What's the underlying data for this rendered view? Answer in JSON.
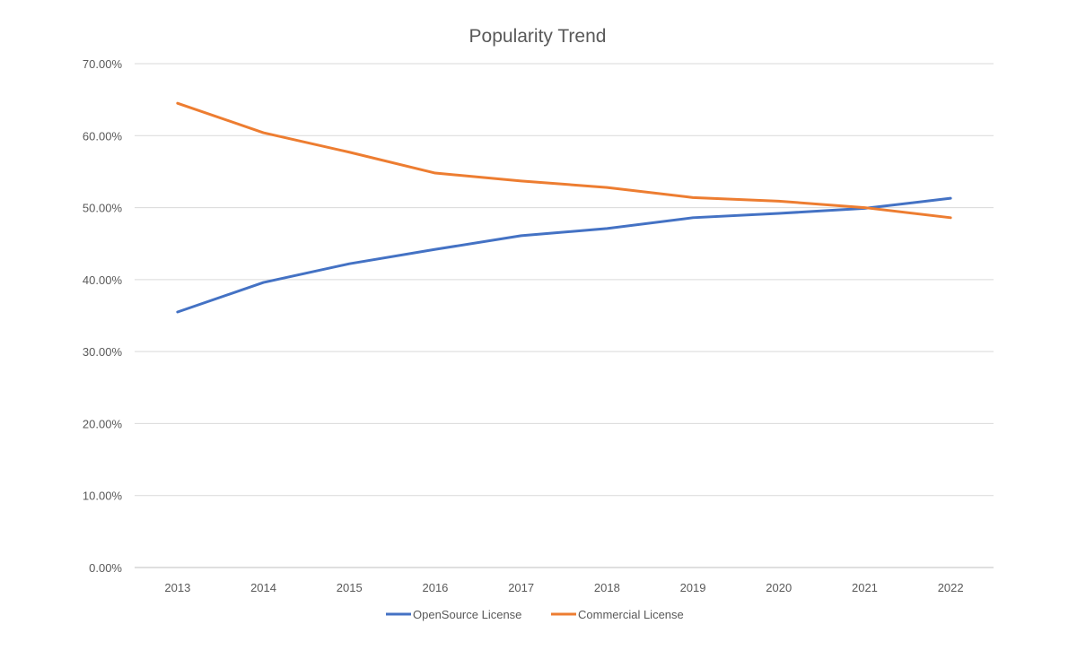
{
  "chart_data": {
    "type": "line",
    "title": "Popularity Trend",
    "xlabel": "",
    "ylabel": "",
    "categories": [
      "2013",
      "2014",
      "2015",
      "2016",
      "2017",
      "2018",
      "2019",
      "2020",
      "2021",
      "2022"
    ],
    "ylim": [
      0,
      0.7
    ],
    "yticks": [
      0,
      0.1,
      0.2,
      0.3,
      0.4,
      0.5,
      0.6,
      0.7
    ],
    "ytick_labels": [
      "0.00%",
      "10.00%",
      "20.00%",
      "30.00%",
      "40.00%",
      "50.00%",
      "60.00%",
      "70.00%"
    ],
    "grid": true,
    "legend_position": "bottom",
    "series": [
      {
        "name": "OpenSource License",
        "color": "#4472C4",
        "values": [
          0.355,
          0.396,
          0.422,
          0.442,
          0.461,
          0.471,
          0.486,
          0.492,
          0.499,
          0.513
        ]
      },
      {
        "name": "Commercial License",
        "color": "#ED7D31",
        "values": [
          0.645,
          0.604,
          0.577,
          0.548,
          0.537,
          0.528,
          0.514,
          0.509,
          0.5,
          0.486
        ]
      }
    ]
  }
}
